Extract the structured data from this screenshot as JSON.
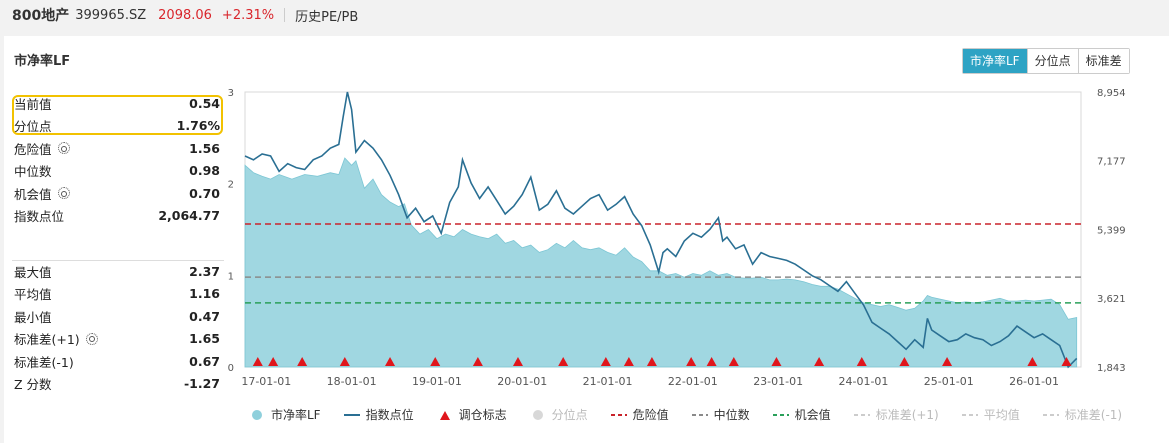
{
  "header": {
    "name": "800地产",
    "code": "399965.SZ",
    "price": "2098.06",
    "change": "+2.31%",
    "page": "历史PE/PB"
  },
  "panel": {
    "title": "市净率LF",
    "tabs": [
      {
        "label": "市净率LF",
        "active": true
      },
      {
        "label": "分位点",
        "active": false
      },
      {
        "label": "标准差",
        "active": false
      }
    ]
  },
  "stats": {
    "group1": [
      {
        "label": "当前值",
        "value": "0.54",
        "gear": false
      },
      {
        "label": "分位点",
        "value": "1.76%",
        "gear": false
      },
      {
        "label": "危险值",
        "value": "1.56",
        "gear": true
      },
      {
        "label": "中位数",
        "value": "0.98",
        "gear": false
      },
      {
        "label": "机会值",
        "value": "0.70",
        "gear": true
      },
      {
        "label": "指数点位",
        "value": "2,064.77",
        "gear": false
      }
    ],
    "group2": [
      {
        "label": "最大值",
        "value": "2.37",
        "gear": false
      },
      {
        "label": "平均值",
        "value": "1.16",
        "gear": false
      },
      {
        "label": "最小值",
        "value": "0.47",
        "gear": false
      },
      {
        "label": "标准差(+1)",
        "value": "1.65",
        "gear": true
      },
      {
        "label": "标准差(-1)",
        "value": "0.67",
        "gear": false
      },
      {
        "label": "Z 分数",
        "value": "-1.27",
        "gear": false
      }
    ]
  },
  "colors": {
    "area": "#8fd0dc",
    "line": "#2a6f93",
    "danger": "#c9232b",
    "median": "#8a8a8a",
    "opportunity": "#2aa05a",
    "marker": "#e0161c",
    "highlight": "#f2c200",
    "tab_active": "#2ea3c4"
  },
  "chart_data": {
    "type": "area",
    "x_ticks": [
      "17-01-01",
      "18-01-01",
      "19-01-01",
      "20-01-01",
      "21-01-01",
      "22-01-01",
      "23-01-01",
      "24-01-01",
      "25-01-01",
      "26-01-01"
    ],
    "x_range": [
      2016.75,
      2026.55
    ],
    "y_left": {
      "range": [
        0,
        3
      ],
      "ticks": [
        "0",
        "1",
        "2",
        "3"
      ]
    },
    "y_right": {
      "range": [
        1843,
        8954
      ],
      "ticks": [
        "1,843",
        "3,621",
        "5,399",
        "7,177",
        "8,954"
      ]
    },
    "reference_lines": {
      "danger": 1.56,
      "median": 0.98,
      "opportunity": 0.7
    },
    "series": [
      {
        "name": "市净率LF",
        "axis": "left",
        "points": [
          [
            2016.75,
            2.2
          ],
          [
            2016.85,
            2.12
          ],
          [
            2016.95,
            2.08
          ],
          [
            2017.05,
            2.05
          ],
          [
            2017.15,
            2.1
          ],
          [
            2017.3,
            2.05
          ],
          [
            2017.45,
            2.1
          ],
          [
            2017.6,
            2.08
          ],
          [
            2017.75,
            2.12
          ],
          [
            2017.85,
            2.1
          ],
          [
            2017.92,
            2.28
          ],
          [
            2018.0,
            2.2
          ],
          [
            2018.05,
            2.25
          ],
          [
            2018.15,
            1.95
          ],
          [
            2018.25,
            2.05
          ],
          [
            2018.35,
            1.88
          ],
          [
            2018.45,
            1.8
          ],
          [
            2018.55,
            1.75
          ],
          [
            2018.62,
            1.78
          ],
          [
            2018.7,
            1.55
          ],
          [
            2018.8,
            1.45
          ],
          [
            2018.9,
            1.5
          ],
          [
            2019.0,
            1.4
          ],
          [
            2019.1,
            1.45
          ],
          [
            2019.2,
            1.42
          ],
          [
            2019.3,
            1.5
          ],
          [
            2019.4,
            1.45
          ],
          [
            2019.5,
            1.42
          ],
          [
            2019.6,
            1.4
          ],
          [
            2019.7,
            1.45
          ],
          [
            2019.8,
            1.35
          ],
          [
            2019.9,
            1.38
          ],
          [
            2020.0,
            1.3
          ],
          [
            2020.1,
            1.33
          ],
          [
            2020.2,
            1.25
          ],
          [
            2020.3,
            1.28
          ],
          [
            2020.4,
            1.35
          ],
          [
            2020.5,
            1.3
          ],
          [
            2020.6,
            1.38
          ],
          [
            2020.7,
            1.3
          ],
          [
            2020.8,
            1.28
          ],
          [
            2020.9,
            1.3
          ],
          [
            2021.0,
            1.25
          ],
          [
            2021.1,
            1.22
          ],
          [
            2021.2,
            1.3
          ],
          [
            2021.3,
            1.2
          ],
          [
            2021.4,
            1.15
          ],
          [
            2021.5,
            1.05
          ],
          [
            2021.6,
            1.05
          ],
          [
            2021.7,
            1.0
          ],
          [
            2021.8,
            1.02
          ],
          [
            2021.9,
            0.98
          ],
          [
            2022.0,
            1.02
          ],
          [
            2022.1,
            1.0
          ],
          [
            2022.2,
            1.05
          ],
          [
            2022.3,
            1.0
          ],
          [
            2022.4,
            1.02
          ],
          [
            2022.5,
            0.98
          ],
          [
            2022.6,
            0.97
          ],
          [
            2022.7,
            0.97
          ],
          [
            2022.8,
            0.98
          ],
          [
            2022.9,
            0.95
          ],
          [
            2023.0,
            0.95
          ],
          [
            2023.1,
            0.96
          ],
          [
            2023.2,
            0.95
          ],
          [
            2023.3,
            0.93
          ],
          [
            2023.4,
            0.9
          ],
          [
            2023.5,
            0.88
          ],
          [
            2023.6,
            0.88
          ],
          [
            2023.7,
            0.85
          ],
          [
            2023.8,
            0.8
          ],
          [
            2023.9,
            0.75
          ],
          [
            2024.0,
            0.7
          ],
          [
            2024.1,
            0.68
          ],
          [
            2024.2,
            0.66
          ],
          [
            2024.3,
            0.68
          ],
          [
            2024.4,
            0.65
          ],
          [
            2024.5,
            0.62
          ],
          [
            2024.6,
            0.64
          ],
          [
            2024.7,
            0.72
          ],
          [
            2024.75,
            0.78
          ],
          [
            2024.8,
            0.76
          ],
          [
            2024.9,
            0.74
          ],
          [
            2025.0,
            0.72
          ],
          [
            2025.1,
            0.7
          ],
          [
            2025.2,
            0.71
          ],
          [
            2025.3,
            0.7
          ],
          [
            2025.4,
            0.71
          ],
          [
            2025.5,
            0.73
          ],
          [
            2025.6,
            0.75
          ],
          [
            2025.7,
            0.72
          ],
          [
            2025.8,
            0.72
          ],
          [
            2025.9,
            0.73
          ],
          [
            2026.0,
            0.72
          ],
          [
            2026.1,
            0.73
          ],
          [
            2026.2,
            0.74
          ],
          [
            2026.3,
            0.68
          ],
          [
            2026.4,
            0.52
          ],
          [
            2026.5,
            0.54
          ]
        ]
      },
      {
        "name": "指数点位",
        "axis": "right",
        "points": [
          [
            2016.75,
            7300
          ],
          [
            2016.85,
            7200
          ],
          [
            2016.95,
            7350
          ],
          [
            2017.05,
            7300
          ],
          [
            2017.15,
            6900
          ],
          [
            2017.25,
            7100
          ],
          [
            2017.35,
            7000
          ],
          [
            2017.45,
            6950
          ],
          [
            2017.55,
            7200
          ],
          [
            2017.65,
            7300
          ],
          [
            2017.75,
            7500
          ],
          [
            2017.85,
            7600
          ],
          [
            2017.9,
            8300
          ],
          [
            2017.95,
            8954
          ],
          [
            2018.0,
            8500
          ],
          [
            2018.05,
            7400
          ],
          [
            2018.15,
            7700
          ],
          [
            2018.25,
            7500
          ],
          [
            2018.35,
            7200
          ],
          [
            2018.45,
            6800
          ],
          [
            2018.55,
            6300
          ],
          [
            2018.65,
            5700
          ],
          [
            2018.75,
            5950
          ],
          [
            2018.85,
            5600
          ],
          [
            2018.95,
            5750
          ],
          [
            2019.05,
            5300
          ],
          [
            2019.15,
            6100
          ],
          [
            2019.25,
            6500
          ],
          [
            2019.3,
            7200
          ],
          [
            2019.4,
            6600
          ],
          [
            2019.5,
            6200
          ],
          [
            2019.6,
            6500
          ],
          [
            2019.7,
            6150
          ],
          [
            2019.8,
            5800
          ],
          [
            2019.9,
            6000
          ],
          [
            2020.0,
            6300
          ],
          [
            2020.1,
            6750
          ],
          [
            2020.2,
            5900
          ],
          [
            2020.3,
            6050
          ],
          [
            2020.4,
            6400
          ],
          [
            2020.5,
            5950
          ],
          [
            2020.6,
            5800
          ],
          [
            2020.7,
            6000
          ],
          [
            2020.8,
            6200
          ],
          [
            2020.9,
            6300
          ],
          [
            2021.0,
            5900
          ],
          [
            2021.1,
            6050
          ],
          [
            2021.2,
            6250
          ],
          [
            2021.3,
            5800
          ],
          [
            2021.4,
            5500
          ],
          [
            2021.5,
            5000
          ],
          [
            2021.6,
            4300
          ],
          [
            2021.65,
            4800
          ],
          [
            2021.7,
            4900
          ],
          [
            2021.8,
            4700
          ],
          [
            2021.9,
            5100
          ],
          [
            2022.0,
            5300
          ],
          [
            2022.1,
            5200
          ],
          [
            2022.2,
            5400
          ],
          [
            2022.3,
            5700
          ],
          [
            2022.35,
            5100
          ],
          [
            2022.4,
            5200
          ],
          [
            2022.5,
            4900
          ],
          [
            2022.6,
            5000
          ],
          [
            2022.7,
            4500
          ],
          [
            2022.8,
            4800
          ],
          [
            2022.9,
            4700
          ],
          [
            2023.0,
            4650
          ],
          [
            2023.1,
            4600
          ],
          [
            2023.2,
            4500
          ],
          [
            2023.3,
            4350
          ],
          [
            2023.4,
            4200
          ],
          [
            2023.5,
            4100
          ],
          [
            2023.6,
            3950
          ],
          [
            2023.7,
            3800
          ],
          [
            2023.8,
            4050
          ],
          [
            2023.9,
            3750
          ],
          [
            2024.0,
            3450
          ],
          [
            2024.1,
            3000
          ],
          [
            2024.2,
            2850
          ],
          [
            2024.3,
            2700
          ],
          [
            2024.4,
            2500
          ],
          [
            2024.5,
            2300
          ],
          [
            2024.6,
            2550
          ],
          [
            2024.7,
            2350
          ],
          [
            2024.75,
            3100
          ],
          [
            2024.8,
            2800
          ],
          [
            2024.9,
            2650
          ],
          [
            2025.0,
            2500
          ],
          [
            2025.1,
            2550
          ],
          [
            2025.2,
            2700
          ],
          [
            2025.3,
            2600
          ],
          [
            2025.4,
            2550
          ],
          [
            2025.5,
            2400
          ],
          [
            2025.6,
            2500
          ],
          [
            2025.7,
            2650
          ],
          [
            2025.8,
            2900
          ],
          [
            2025.9,
            2750
          ],
          [
            2026.0,
            2600
          ],
          [
            2026.1,
            2700
          ],
          [
            2026.2,
            2550
          ],
          [
            2026.3,
            2400
          ],
          [
            2026.4,
            1843
          ],
          [
            2026.5,
            2064.77
          ]
        ]
      }
    ],
    "markers": [
      2016.9,
      2017.08,
      2017.42,
      2017.92,
      2018.45,
      2018.98,
      2019.48,
      2019.95,
      2020.48,
      2020.98,
      2021.25,
      2021.52,
      2021.98,
      2022.22,
      2022.48,
      2022.98,
      2023.48,
      2023.98,
      2024.48,
      2024.98,
      2025.98,
      2026.38
    ],
    "legend": [
      {
        "label": "市净率LF",
        "kind": "dot",
        "color": "#8fd0dc",
        "dim": false
      },
      {
        "label": "指数点位",
        "kind": "line",
        "color": "#2a6f93",
        "dim": false
      },
      {
        "label": "调仓标志",
        "kind": "triangle",
        "color": "#e0161c",
        "dim": false
      },
      {
        "label": "分位点",
        "kind": "dot",
        "color": "#d8d8d8",
        "dim": true
      },
      {
        "label": "危险值",
        "kind": "dash",
        "color": "#c9232b",
        "dim": false
      },
      {
        "label": "中位数",
        "kind": "dash",
        "color": "#8a8a8a",
        "dim": false
      },
      {
        "label": "机会值",
        "kind": "dash",
        "color": "#2aa05a",
        "dim": false
      },
      {
        "label": "标准差(+1)",
        "kind": "dash",
        "color": "#cccccc",
        "dim": true
      },
      {
        "label": "平均值",
        "kind": "dash",
        "color": "#cccccc",
        "dim": true
      },
      {
        "label": "标准差(-1)",
        "kind": "dash",
        "color": "#cccccc",
        "dim": true
      }
    ]
  }
}
